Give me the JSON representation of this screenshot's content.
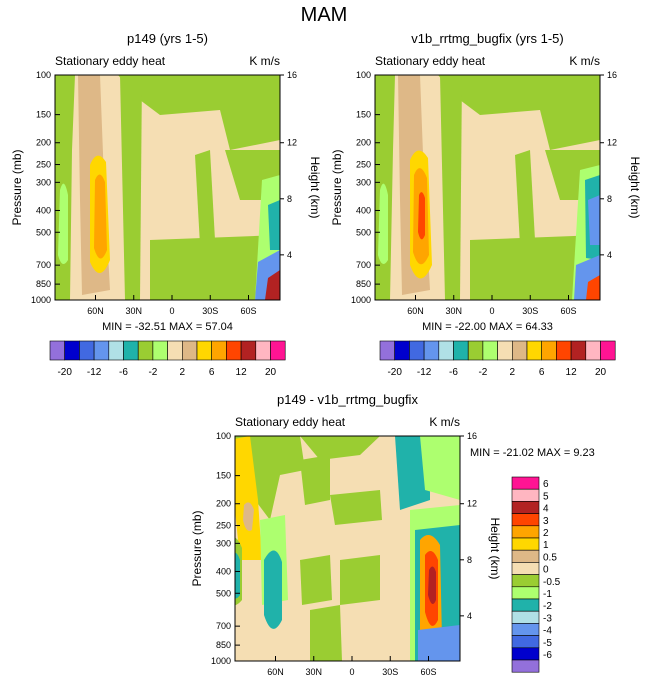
{
  "page": {
    "title": "MAM"
  },
  "chart_data": [
    {
      "type": "heatmap",
      "id": "p1",
      "title": "p149 (yrs 1-5)",
      "left_label": "Stationary eddy heat",
      "units": "K m/s",
      "ylabel": "Pressure (mb)",
      "ylabel_right": "Height (km)",
      "y_ticks": [
        "100",
        "150",
        "200",
        "250",
        "300",
        "400",
        "500",
        "700",
        "850",
        "1000"
      ],
      "y_ticks_right": [
        "16",
        "12",
        "8",
        "4"
      ],
      "x_ticks": [
        "60N",
        "30N",
        "0",
        "30S",
        "60S"
      ],
      "stats": "MIN = -32.51   MAX =  57.04",
      "min": -32.51,
      "max": 57.04
    },
    {
      "type": "heatmap",
      "id": "p2",
      "title": "v1b_rrtmg_bugfix (yrs 1-5)",
      "left_label": "Stationary eddy heat",
      "units": "K m/s",
      "ylabel": "Pressure (mb)",
      "ylabel_right": "Height (km)",
      "y_ticks": [
        "100",
        "150",
        "200",
        "250",
        "300",
        "400",
        "500",
        "700",
        "850",
        "1000"
      ],
      "y_ticks_right": [
        "16",
        "12",
        "8",
        "4"
      ],
      "x_ticks": [
        "60N",
        "30N",
        "0",
        "30S",
        "60S"
      ],
      "stats": "MIN = -22.00   MAX =  64.33",
      "min": -22.0,
      "max": 64.33
    },
    {
      "type": "heatmap",
      "id": "p3",
      "title": "p149 - v1b_rrtmg_bugfix",
      "left_label": "Stationary eddy heat",
      "units": "K m/s",
      "ylabel": "Pressure (mb)",
      "ylabel_right": "Height (km)",
      "y_ticks": [
        "100",
        "150",
        "200",
        "250",
        "300",
        "400",
        "500",
        "700",
        "850",
        "1000"
      ],
      "y_ticks_right": [
        "16",
        "12",
        "8",
        "4"
      ],
      "x_ticks": [
        "60N",
        "30N",
        "0",
        "30S",
        "60S"
      ],
      "stats": "MIN = -21.02   MAX =   9.23",
      "min": -21.02,
      "max": 9.23
    }
  ],
  "colorbar_top": {
    "labels": [
      "-20",
      "-12",
      "-6",
      "-2",
      "2",
      "6",
      "12",
      "20"
    ],
    "colors": [
      "#9370DB",
      "#0000CD",
      "#4169E1",
      "#6495ED",
      "#B0E0E6",
      "#20B2AA",
      "#9ACD32",
      "#ADFF6F",
      "#F5DEB3",
      "#DEB887",
      "#FFD700",
      "#FFA500",
      "#FF4500",
      "#B22222",
      "#FFB6C1",
      "#FF1493"
    ]
  },
  "colorbar_diff": {
    "labels": [
      "6",
      "5",
      "4",
      "3",
      "2",
      "1",
      "0.5",
      "0",
      "-0.5",
      "-1",
      "-2",
      "-3",
      "-4",
      "-5",
      "-6"
    ],
    "colors": [
      "#FF1493",
      "#FFB6C1",
      "#B22222",
      "#FF4500",
      "#FFA500",
      "#FFD700",
      "#DEB887",
      "#F5DEB3",
      "#9ACD32",
      "#ADFF6F",
      "#20B2AA",
      "#B0E0E6",
      "#6495ED",
      "#4169E1",
      "#0000CD",
      "#9370DB"
    ]
  }
}
